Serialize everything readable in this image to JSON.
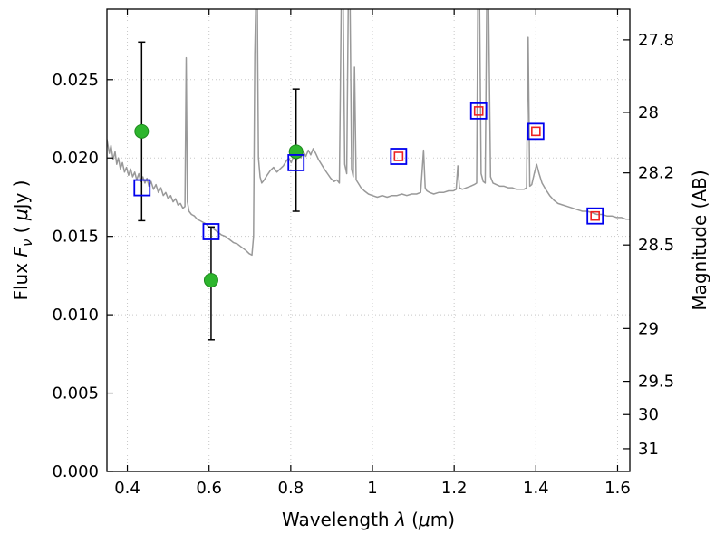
{
  "chart_data": {
    "type": "line",
    "title": "",
    "xlabel": {
      "parts": [
        {
          "t": "Wavelength  "
        },
        {
          "t": "λ",
          "i": true
        },
        {
          "t": "  ("
        },
        {
          "t": "μ",
          "i": true
        },
        {
          "t": "m)"
        }
      ]
    },
    "ylabel_left": {
      "parts": [
        {
          "t": "Flux  "
        },
        {
          "t": "F",
          "i": true
        },
        {
          "t": "ν",
          "i": true,
          "sub": true
        },
        {
          "t": "  ( "
        },
        {
          "t": "μ",
          "i": true
        },
        {
          "t": "Jy )"
        }
      ]
    },
    "ylabel_right": {
      "parts": [
        {
          "t": "Magnitude (AB)"
        }
      ]
    },
    "xlim": [
      0.35,
      1.63
    ],
    "ylim": [
      0,
      0.0295
    ],
    "grid": true,
    "legend": "none",
    "x_ticks": [
      {
        "value": 0.4,
        "label": "0.4"
      },
      {
        "value": 0.6,
        "label": "0.6"
      },
      {
        "value": 0.8,
        "label": "0.8"
      },
      {
        "value": 1.0,
        "label": "1"
      },
      {
        "value": 1.2,
        "label": "1.2"
      },
      {
        "value": 1.4,
        "label": "1.4"
      },
      {
        "value": 1.6,
        "label": "1.6"
      }
    ],
    "y_ticks_left": [
      {
        "value": 0.0,
        "label": "0.000"
      },
      {
        "value": 0.005,
        "label": "0.005"
      },
      {
        "value": 0.01,
        "label": "0.010"
      },
      {
        "value": 0.015,
        "label": "0.015"
      },
      {
        "value": 0.02,
        "label": "0.020"
      },
      {
        "value": 0.025,
        "label": "0.025"
      }
    ],
    "y_ticks_right": [
      {
        "flux": 0.02754,
        "label": "27.8"
      },
      {
        "flux": 0.02291,
        "label": "28"
      },
      {
        "flux": 0.01905,
        "label": "28.2"
      },
      {
        "flux": 0.01445,
        "label": "28.5"
      },
      {
        "flux": 0.00912,
        "label": "29"
      },
      {
        "flux": 0.00575,
        "label": "29.5"
      },
      {
        "flux": 0.00363,
        "label": "30"
      },
      {
        "flux": 0.00145,
        "label": "31"
      }
    ],
    "colors": {
      "spectrum": "#999999",
      "observed": "#2db52d",
      "observed_edge": "#1d8a1d",
      "model_square": "#0000ee",
      "red_square": "#ee2222",
      "errorbar": "#000000",
      "grid": "#c8c8c8",
      "frame": "#000000"
    },
    "series": {
      "spectrum": {
        "name": "model-spectrum",
        "color": "#999999",
        "xy": [
          [
            0.35,
            0.0212
          ],
          [
            0.356,
            0.0203
          ],
          [
            0.36,
            0.0208
          ],
          [
            0.365,
            0.0199
          ],
          [
            0.37,
            0.0204
          ],
          [
            0.374,
            0.0196
          ],
          [
            0.378,
            0.02
          ],
          [
            0.383,
            0.0193
          ],
          [
            0.388,
            0.0197
          ],
          [
            0.393,
            0.0191
          ],
          [
            0.398,
            0.0194
          ],
          [
            0.403,
            0.0189
          ],
          [
            0.408,
            0.0193
          ],
          [
            0.413,
            0.0188
          ],
          [
            0.418,
            0.0191
          ],
          [
            0.423,
            0.0186
          ],
          [
            0.428,
            0.019
          ],
          [
            0.433,
            0.0185
          ],
          [
            0.438,
            0.0188
          ],
          [
            0.443,
            0.0184
          ],
          [
            0.448,
            0.0187
          ],
          [
            0.453,
            0.0182
          ],
          [
            0.458,
            0.0185
          ],
          [
            0.464,
            0.018
          ],
          [
            0.47,
            0.0183
          ],
          [
            0.476,
            0.0178
          ],
          [
            0.482,
            0.0181
          ],
          [
            0.488,
            0.0176
          ],
          [
            0.494,
            0.0178
          ],
          [
            0.5,
            0.0174
          ],
          [
            0.506,
            0.0176
          ],
          [
            0.512,
            0.0172
          ],
          [
            0.518,
            0.0174
          ],
          [
            0.524,
            0.017
          ],
          [
            0.53,
            0.0171
          ],
          [
            0.536,
            0.0168
          ],
          [
            0.541,
            0.0169
          ],
          [
            0.544,
            0.0264
          ],
          [
            0.547,
            0.0172
          ],
          [
            0.551,
            0.0166
          ],
          [
            0.557,
            0.0164
          ],
          [
            0.564,
            0.0163
          ],
          [
            0.571,
            0.0161
          ],
          [
            0.578,
            0.016
          ],
          [
            0.585,
            0.0159
          ],
          [
            0.592,
            0.0158
          ],
          [
            0.6,
            0.0156
          ],
          [
            0.61,
            0.0155
          ],
          [
            0.62,
            0.0153
          ],
          [
            0.63,
            0.0151
          ],
          [
            0.64,
            0.015
          ],
          [
            0.65,
            0.0148
          ],
          [
            0.66,
            0.0146
          ],
          [
            0.67,
            0.0145
          ],
          [
            0.68,
            0.0143
          ],
          [
            0.69,
            0.0141
          ],
          [
            0.698,
            0.0139
          ],
          [
            0.705,
            0.0138
          ],
          [
            0.709,
            0.015
          ],
          [
            0.712,
            0.0266
          ],
          [
            0.715,
            0.0305
          ],
          [
            0.718,
            0.0305
          ],
          [
            0.721,
            0.02
          ],
          [
            0.725,
            0.0188
          ],
          [
            0.729,
            0.0184
          ],
          [
            0.735,
            0.0186
          ],
          [
            0.742,
            0.0189
          ],
          [
            0.75,
            0.0192
          ],
          [
            0.758,
            0.0194
          ],
          [
            0.766,
            0.0191
          ],
          [
            0.774,
            0.0193
          ],
          [
            0.782,
            0.0195
          ],
          [
            0.789,
            0.0198
          ],
          [
            0.795,
            0.02
          ],
          [
            0.801,
            0.0197
          ],
          [
            0.807,
            0.0201
          ],
          [
            0.813,
            0.0198
          ],
          [
            0.819,
            0.0202
          ],
          [
            0.825,
            0.02
          ],
          [
            0.831,
            0.0204
          ],
          [
            0.837,
            0.0201
          ],
          [
            0.843,
            0.0205
          ],
          [
            0.849,
            0.0202
          ],
          [
            0.855,
            0.0206
          ],
          [
            0.861,
            0.0203
          ],
          [
            0.868,
            0.0199
          ],
          [
            0.875,
            0.0196
          ],
          [
            0.882,
            0.0193
          ],
          [
            0.89,
            0.019
          ],
          [
            0.898,
            0.0187
          ],
          [
            0.906,
            0.0185
          ],
          [
            0.913,
            0.0186
          ],
          [
            0.919,
            0.0184
          ],
          [
            0.924,
            0.0305
          ],
          [
            0.928,
            0.0305
          ],
          [
            0.932,
            0.0196
          ],
          [
            0.937,
            0.019
          ],
          [
            0.941,
            0.0305
          ],
          [
            0.945,
            0.0305
          ],
          [
            0.949,
            0.0193
          ],
          [
            0.953,
            0.0188
          ],
          [
            0.956,
            0.0258
          ],
          [
            0.96,
            0.0186
          ],
          [
            0.965,
            0.0184
          ],
          [
            0.972,
            0.0181
          ],
          [
            0.98,
            0.0179
          ],
          [
            0.99,
            0.0177
          ],
          [
            1.0,
            0.0176
          ],
          [
            1.012,
            0.0175
          ],
          [
            1.024,
            0.0176
          ],
          [
            1.036,
            0.0175
          ],
          [
            1.048,
            0.0176
          ],
          [
            1.06,
            0.0176
          ],
          [
            1.072,
            0.0177
          ],
          [
            1.084,
            0.0176
          ],
          [
            1.096,
            0.0177
          ],
          [
            1.108,
            0.0177
          ],
          [
            1.118,
            0.0178
          ],
          [
            1.125,
            0.0205
          ],
          [
            1.129,
            0.0181
          ],
          [
            1.133,
            0.0179
          ],
          [
            1.14,
            0.0178
          ],
          [
            1.15,
            0.0177
          ],
          [
            1.162,
            0.0178
          ],
          [
            1.174,
            0.0178
          ],
          [
            1.186,
            0.0179
          ],
          [
            1.198,
            0.0179
          ],
          [
            1.205,
            0.018
          ],
          [
            1.209,
            0.0195
          ],
          [
            1.213,
            0.0181
          ],
          [
            1.22,
            0.018
          ],
          [
            1.23,
            0.0181
          ],
          [
            1.24,
            0.0182
          ],
          [
            1.249,
            0.0183
          ],
          [
            1.255,
            0.0184
          ],
          [
            1.258,
            0.0305
          ],
          [
            1.262,
            0.0305
          ],
          [
            1.266,
            0.019
          ],
          [
            1.271,
            0.0185
          ],
          [
            1.276,
            0.0184
          ],
          [
            1.28,
            0.0305
          ],
          [
            1.284,
            0.0305
          ],
          [
            1.289,
            0.0188
          ],
          [
            1.295,
            0.0184
          ],
          [
            1.303,
            0.0183
          ],
          [
            1.312,
            0.0182
          ],
          [
            1.322,
            0.0182
          ],
          [
            1.332,
            0.0181
          ],
          [
            1.342,
            0.0181
          ],
          [
            1.352,
            0.018
          ],
          [
            1.362,
            0.018
          ],
          [
            1.371,
            0.018
          ],
          [
            1.377,
            0.0181
          ],
          [
            1.381,
            0.0277
          ],
          [
            1.385,
            0.0182
          ],
          [
            1.39,
            0.0183
          ],
          [
            1.396,
            0.019
          ],
          [
            1.402,
            0.0196
          ],
          [
            1.408,
            0.019
          ],
          [
            1.415,
            0.0184
          ],
          [
            1.424,
            0.018
          ],
          [
            1.434,
            0.0176
          ],
          [
            1.444,
            0.0173
          ],
          [
            1.454,
            0.0171
          ],
          [
            1.466,
            0.017
          ],
          [
            1.478,
            0.0169
          ],
          [
            1.49,
            0.0168
          ],
          [
            1.502,
            0.0167
          ],
          [
            1.514,
            0.0166
          ],
          [
            1.526,
            0.0166
          ],
          [
            1.538,
            0.0165
          ],
          [
            1.55,
            0.0164
          ],
          [
            1.562,
            0.0164
          ],
          [
            1.574,
            0.0163
          ],
          [
            1.586,
            0.0163
          ],
          [
            1.598,
            0.0162
          ],
          [
            1.61,
            0.0162
          ],
          [
            1.62,
            0.0161
          ],
          [
            1.63,
            0.0161
          ]
        ]
      },
      "observed": {
        "name": "observed-photometry",
        "marker": "filled-circle",
        "color": "#2db52d",
        "points": [
          {
            "x": 0.435,
            "flux": 0.0217,
            "err_plus": 0.0057,
            "err_minus": 0.0057
          },
          {
            "x": 0.605,
            "flux": 0.0122,
            "err_plus": 0.0034,
            "err_minus": 0.0038
          },
          {
            "x": 0.813,
            "flux": 0.0204,
            "err_plus": 0.004,
            "err_minus": 0.0038
          }
        ]
      },
      "model": {
        "name": "model-photometry",
        "marker": "open-square",
        "color": "#0000ee",
        "points": [
          {
            "x": 0.436,
            "flux": 0.0181,
            "red_inner": false
          },
          {
            "x": 0.605,
            "flux": 0.0153,
            "red_inner": false
          },
          {
            "x": 0.813,
            "flux": 0.0197,
            "red_inner": false
          },
          {
            "x": 1.064,
            "flux": 0.0201,
            "red_inner": true
          },
          {
            "x": 1.26,
            "flux": 0.023,
            "red_inner": true
          },
          {
            "x": 1.4,
            "flux": 0.0217,
            "red_inner": true
          },
          {
            "x": 1.545,
            "flux": 0.0163,
            "red_inner": true
          }
        ]
      }
    }
  }
}
